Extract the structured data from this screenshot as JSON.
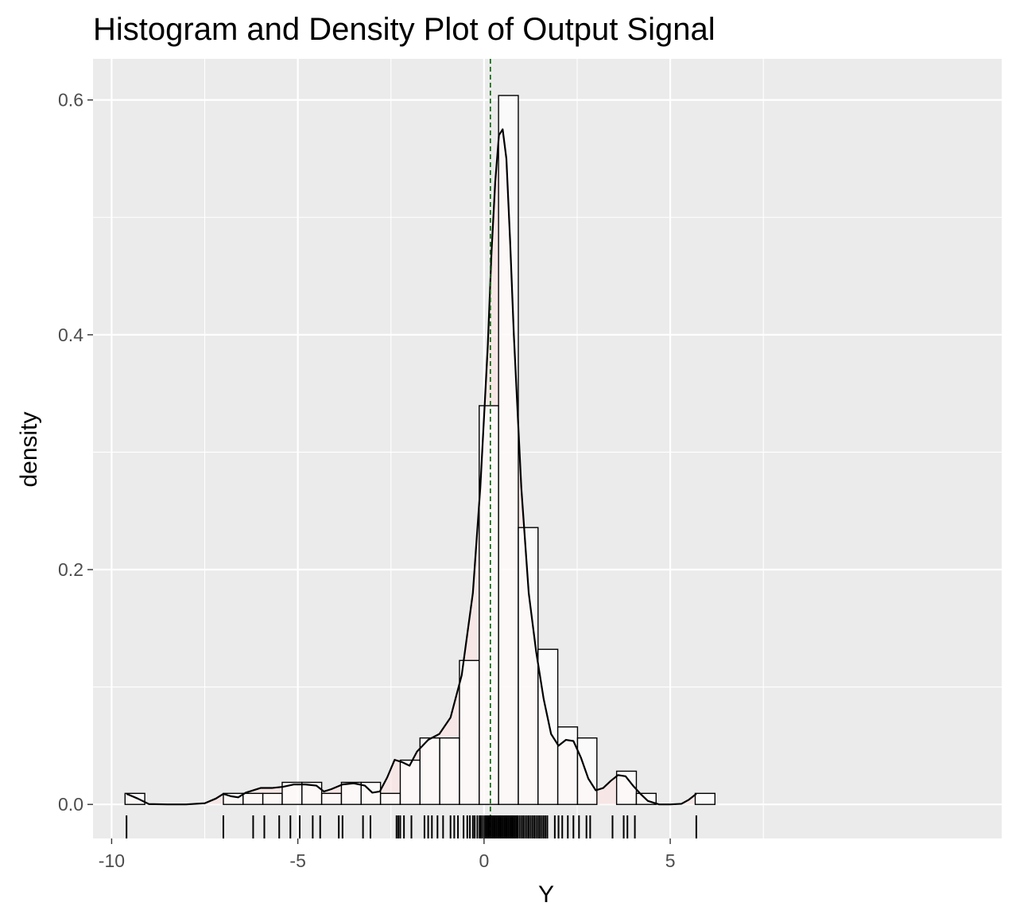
{
  "chart_data": {
    "type": "histogram",
    "title": "Histogram and Density Plot of Output Signal",
    "xlabel": "Y",
    "ylabel": "density",
    "xlim": [
      -10.5,
      13.9
    ],
    "ylim": [
      -0.029,
      0.635
    ],
    "x_ticks": [
      -10,
      -5,
      0,
      5
    ],
    "x_tick_labels": [
      "-10",
      "-5",
      "0",
      "5"
    ],
    "y_ticks": [
      0.0,
      0.2,
      0.4,
      0.6
    ],
    "y_tick_labels": [
      "0.0",
      "0.2",
      "0.4",
      "0.6"
    ],
    "grid": true,
    "background": "#ebebeb",
    "bar_fill": "#ffffff",
    "bar_stroke": "#000000",
    "density_fill": "#ffe4e1",
    "density_fill_opacity": 0.5,
    "mean_line_color": "#006400",
    "mean_line_x": 0.17,
    "bins": [
      {
        "start": -9.64,
        "end": -9.11,
        "density": 0.0094
      },
      {
        "start": -7.0,
        "end": -6.47,
        "density": 0.0094
      },
      {
        "start": -6.47,
        "end": -5.94,
        "density": 0.0094
      },
      {
        "start": -5.94,
        "end": -5.42,
        "density": 0.0094
      },
      {
        "start": -5.42,
        "end": -4.89,
        "density": 0.0188
      },
      {
        "start": -4.89,
        "end": -4.36,
        "density": 0.0188
      },
      {
        "start": -4.36,
        "end": -3.83,
        "density": 0.0094
      },
      {
        "start": -3.83,
        "end": -3.3,
        "density": 0.0188
      },
      {
        "start": -3.3,
        "end": -2.78,
        "density": 0.0188
      },
      {
        "start": -2.78,
        "end": -2.25,
        "density": 0.0094
      },
      {
        "start": -2.25,
        "end": -1.72,
        "density": 0.0377
      },
      {
        "start": -1.72,
        "end": -1.19,
        "density": 0.0566
      },
      {
        "start": -1.19,
        "end": -0.66,
        "density": 0.0566
      },
      {
        "start": -0.66,
        "end": -0.13,
        "density": 0.1226
      },
      {
        "start": -0.13,
        "end": 0.39,
        "density": 0.3396
      },
      {
        "start": 0.39,
        "end": 0.92,
        "density": 0.6038
      },
      {
        "start": 0.92,
        "end": 1.45,
        "density": 0.2358
      },
      {
        "start": 1.45,
        "end": 1.98,
        "density": 0.1321
      },
      {
        "start": 1.98,
        "end": 2.51,
        "density": 0.066
      },
      {
        "start": 2.51,
        "end": 3.03,
        "density": 0.0566
      },
      {
        "start": 3.56,
        "end": 4.09,
        "density": 0.0283
      },
      {
        "start": 4.09,
        "end": 4.62,
        "density": 0.0094
      },
      {
        "start": 5.67,
        "end": 6.2,
        "density": 0.0094
      }
    ],
    "density_curve": {
      "x": [
        -9.6,
        -9.3,
        -9.0,
        -8.5,
        -8.0,
        -7.5,
        -7.2,
        -7.0,
        -6.8,
        -6.6,
        -6.4,
        -6.0,
        -5.7,
        -5.4,
        -5.1,
        -4.8,
        -4.5,
        -4.3,
        -4.1,
        -3.8,
        -3.5,
        -3.2,
        -3.0,
        -2.8,
        -2.6,
        -2.4,
        -2.2,
        -2.0,
        -1.8,
        -1.5,
        -1.2,
        -0.9,
        -0.6,
        -0.3,
        -0.1,
        0.1,
        0.2,
        0.3,
        0.4,
        0.5,
        0.6,
        0.7,
        0.8,
        1.0,
        1.2,
        1.4,
        1.6,
        1.8,
        2.0,
        2.2,
        2.4,
        2.6,
        2.8,
        3.0,
        3.2,
        3.4,
        3.6,
        3.8,
        4.0,
        4.2,
        4.4,
        4.7,
        5.0,
        5.3,
        5.5,
        5.7
      ],
      "y": [
        0.009,
        0.005,
        0.0003,
        0.0,
        0.0,
        0.001,
        0.005,
        0.009,
        0.007,
        0.006,
        0.01,
        0.014,
        0.014,
        0.015,
        0.017,
        0.017,
        0.016,
        0.011,
        0.013,
        0.017,
        0.018,
        0.016,
        0.01,
        0.011,
        0.023,
        0.038,
        0.036,
        0.033,
        0.045,
        0.055,
        0.06,
        0.074,
        0.11,
        0.18,
        0.27,
        0.39,
        0.47,
        0.53,
        0.57,
        0.575,
        0.55,
        0.48,
        0.4,
        0.27,
        0.18,
        0.13,
        0.09,
        0.06,
        0.05,
        0.055,
        0.054,
        0.04,
        0.022,
        0.012,
        0.014,
        0.02,
        0.025,
        0.024,
        0.016,
        0.009,
        0.003,
        0.0,
        0.0,
        0.0005,
        0.004,
        0.009
      ]
    },
    "rug": [
      -9.6,
      -7.0,
      -6.2,
      -5.9,
      -5.5,
      -5.2,
      -4.95,
      -4.6,
      -4.4,
      -3.9,
      -3.8,
      -3.25,
      -3.05,
      -2.35,
      -2.3,
      -2.25,
      -2.15,
      -1.95,
      -1.6,
      -1.5,
      -1.4,
      -1.25,
      -1.1,
      -0.9,
      -0.8,
      -0.7,
      -0.55,
      -0.45,
      -0.38,
      -0.3,
      -0.25,
      -0.18,
      -0.12,
      -0.08,
      -0.03,
      0.02,
      0.06,
      0.1,
      0.14,
      0.18,
      0.22,
      0.26,
      0.3,
      0.34,
      0.38,
      0.42,
      0.46,
      0.5,
      0.54,
      0.58,
      0.62,
      0.66,
      0.7,
      0.74,
      0.78,
      0.82,
      0.86,
      0.9,
      0.95,
      1.0,
      1.05,
      1.1,
      1.15,
      1.2,
      1.25,
      1.3,
      1.35,
      1.4,
      1.45,
      1.5,
      1.55,
      1.6,
      1.65,
      1.7,
      1.9,
      2.0,
      2.1,
      2.25,
      2.4,
      2.55,
      2.75,
      2.85,
      3.45,
      3.75,
      3.85,
      4.05,
      5.7
    ]
  }
}
